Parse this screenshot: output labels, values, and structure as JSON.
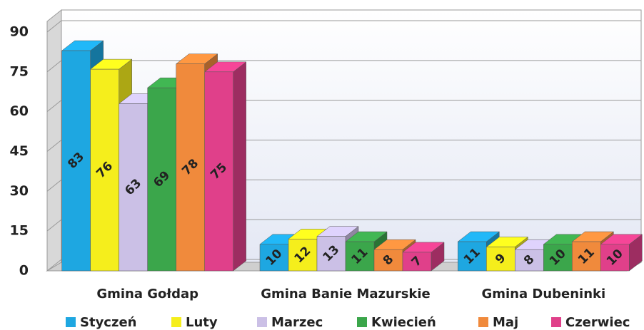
{
  "chart_data": {
    "type": "bar3d",
    "categories": [
      "Gmina Gołdap",
      "Gmina Banie Mazurskie",
      "Gmina Dubeninki"
    ],
    "series": [
      {
        "name": "Styczeń",
        "color": "#1ea7e1",
        "values": [
          83,
          10,
          11
        ]
      },
      {
        "name": "Luty",
        "color": "#f5ee1c",
        "values": [
          76,
          12,
          9
        ]
      },
      {
        "name": "Marzec",
        "color": "#cbc0e6",
        "values": [
          63,
          13,
          8
        ]
      },
      {
        "name": "Kwiecień",
        "color": "#3ba64b",
        "values": [
          69,
          11,
          10
        ]
      },
      {
        "name": "Maj",
        "color": "#f08a3c",
        "values": [
          78,
          8,
          11
        ]
      },
      {
        "name": "Czerwiec",
        "color": "#e0408a",
        "values": [
          75,
          7,
          10
        ]
      }
    ],
    "ylim": [
      0,
      90
    ],
    "yticks": [
      0,
      15,
      30,
      45,
      60,
      75,
      90
    ],
    "grid": true,
    "legend": "bottom"
  }
}
